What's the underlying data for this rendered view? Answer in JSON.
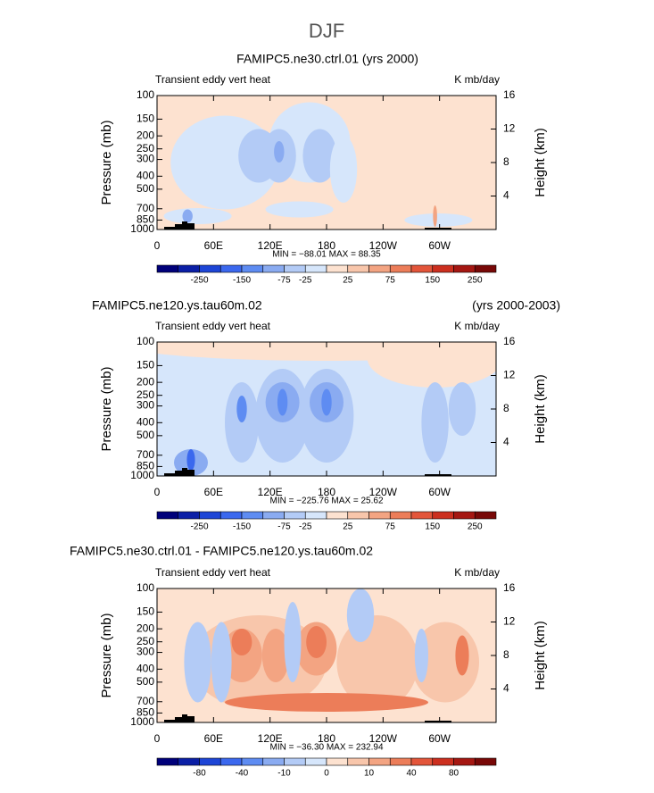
{
  "figure_title": "DJF",
  "chart_data": [
    {
      "type": "contour",
      "title": "FAMIPC5.ne30.ctrl.01 (yrs 2000)",
      "subtitle_left": "Transient eddy vert heat",
      "subtitle_right": "K mb/day",
      "y_label": "Pressure (mb)",
      "y2_label": "Height (km)",
      "log_y": true,
      "ylim": [
        1000,
        100
      ],
      "yticks": [
        100,
        150,
        200,
        250,
        300,
        400,
        500,
        700,
        850,
        1000
      ],
      "y2lim": [
        0,
        16
      ],
      "y2ticks": [
        4,
        8,
        12,
        16
      ],
      "xlim": [
        0,
        360
      ],
      "xticks": [
        0,
        {
          "value": 60,
          "label": "60E"
        },
        {
          "value": 120,
          "label": "120E"
        },
        180,
        {
          "value": 240,
          "label": "120W"
        },
        {
          "value": 300,
          "label": "60W"
        }
      ],
      "stats": "MIN = −88.01   MAX =  88.35",
      "colorbar": {
        "colors": [
          "#00007a",
          "#0b1fa6",
          "#1d45d6",
          "#3b68ee",
          "#5e8cf2",
          "#8aabf1",
          "#b3cbf6",
          "#d6e6fb",
          "#fde2d0",
          "#f8c6ab",
          "#f3a482",
          "#ec7d59",
          "#e3553a",
          "#cc2f1f",
          "#a51712",
          "#780807"
        ],
        "labels": [
          -250,
          -150,
          -75,
          -25,
          25,
          75,
          150,
          250
        ]
      }
    },
    {
      "type": "contour",
      "title": "FAMIPC5.ne120.ys.tau60m.02",
      "title_right": "(yrs 2000-2003)",
      "subtitle_left": "Transient eddy vert heat",
      "subtitle_right": "K mb/day",
      "y_label": "Pressure (mb)",
      "y2_label": "Height (km)",
      "log_y": true,
      "ylim": [
        1000,
        100
      ],
      "yticks": [
        100,
        150,
        200,
        250,
        300,
        400,
        500,
        700,
        850,
        1000
      ],
      "y2lim": [
        0,
        16
      ],
      "y2ticks": [
        4,
        8,
        12,
        16
      ],
      "xlim": [
        0,
        360
      ],
      "xticks": [
        0,
        {
          "value": 60,
          "label": "60E"
        },
        {
          "value": 120,
          "label": "120E"
        },
        180,
        {
          "value": 240,
          "label": "120W"
        },
        {
          "value": 300,
          "label": "60W"
        }
      ],
      "stats": "MIN = −225.76   MAX =  25.62",
      "colorbar": {
        "colors": [
          "#00007a",
          "#0b1fa6",
          "#1d45d6",
          "#3b68ee",
          "#5e8cf2",
          "#8aabf1",
          "#b3cbf6",
          "#d6e6fb",
          "#fde2d0",
          "#f8c6ab",
          "#f3a482",
          "#ec7d59",
          "#e3553a",
          "#cc2f1f",
          "#a51712",
          "#780807"
        ],
        "labels": [
          -250,
          -150,
          -75,
          -25,
          25,
          75,
          150,
          250
        ]
      }
    },
    {
      "type": "contour",
      "title": "FAMIPC5.ne30.ctrl.01 - FAMIPC5.ne120.ys.tau60m.02",
      "subtitle_left": "Transient eddy vert heat",
      "subtitle_right": "K mb/day",
      "y_label": "Pressure (mb)",
      "y2_label": "Height (km)",
      "log_y": true,
      "ylim": [
        1000,
        100
      ],
      "yticks": [
        100,
        150,
        200,
        250,
        300,
        400,
        500,
        700,
        850,
        1000
      ],
      "y2lim": [
        0,
        16
      ],
      "y2ticks": [
        4,
        8,
        12,
        16
      ],
      "xlim": [
        0,
        360
      ],
      "xticks": [
        0,
        {
          "value": 60,
          "label": "60E"
        },
        {
          "value": 120,
          "label": "120E"
        },
        180,
        {
          "value": 240,
          "label": "120W"
        },
        {
          "value": 300,
          "label": "60W"
        }
      ],
      "stats": "MIN = −36.30   MAX = 232.94",
      "colorbar": {
        "colors": [
          "#00007a",
          "#0b1fa6",
          "#1d45d6",
          "#3b68ee",
          "#5e8cf2",
          "#8aabf1",
          "#b3cbf6",
          "#d6e6fb",
          "#fde2d0",
          "#f8c6ab",
          "#f3a482",
          "#ec7d59",
          "#e3553a",
          "#cc2f1f",
          "#a51712",
          "#780807"
        ],
        "labels": [
          -80,
          -40,
          -10,
          0,
          10,
          40,
          80
        ]
      }
    }
  ]
}
